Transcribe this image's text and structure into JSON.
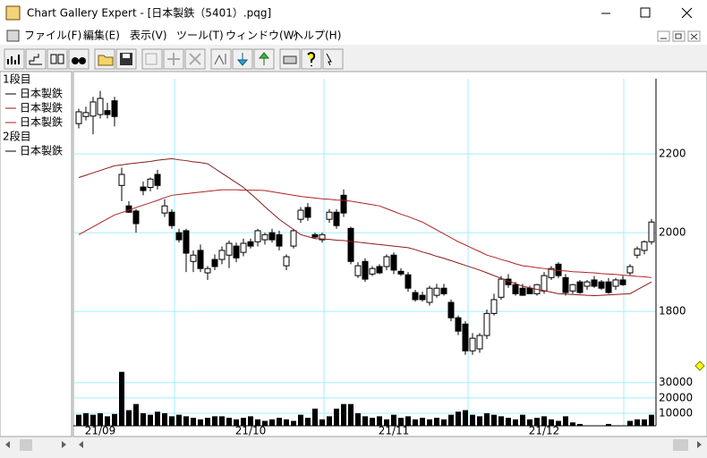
{
  "window": {
    "title": "Chart Gallery Expert - [日本製鉄（5401）.pqg]",
    "menu": [
      "ファイル(F)",
      "編集(E)",
      "表示(V)",
      "ツール(T)",
      "ウィンドウ(W)",
      "ヘルプ(H)"
    ]
  },
  "chart_data": {
    "type": "candlestick",
    "grid": true,
    "categories": [
      null,
      null,
      null,
      "21/09",
      null,
      null,
      null,
      null,
      null,
      null,
      null,
      null,
      null,
      null,
      null,
      null,
      null,
      null,
      null,
      null,
      null,
      null,
      null,
      null,
      "21/10",
      null,
      null,
      null,
      null,
      null,
      null,
      null,
      null,
      null,
      null,
      null,
      null,
      null,
      null,
      null,
      null,
      null,
      null,
      null,
      "21/11",
      null,
      null,
      null,
      null,
      null,
      null,
      null,
      null,
      null,
      null,
      null,
      null,
      null,
      null,
      null,
      null,
      null,
      null,
      null,
      null,
      "21/12",
      null,
      null,
      null,
      null,
      null,
      null,
      null,
      null,
      null,
      null,
      null,
      null,
      null,
      null,
      null
    ],
    "panels": [
      {
        "label": "1段目",
        "ylim": [
          1655,
          2391
        ],
        "yticks": [
          1800,
          2000,
          2200
        ],
        "series": [
          {
            "name": "日本製鉄",
            "type": "candlestick",
            "color": "#000000",
            "open": [
              2277,
              2295,
              2296,
              2300,
              2310,
              2335,
              2120,
              2068,
              2055,
              2116,
              2115,
              2148,
              2050,
              2052,
              2000,
              2005,
              1927,
              1955,
              1898,
              1932,
              1932,
              1943,
              1966,
              1950,
              1977,
              1977,
              1982,
              2000,
              1995,
              1916,
              1966,
              2034,
              2064,
              1995,
              1982,
              2034,
              2052,
              2095,
              2011,
              1891,
              1927,
              1895,
              1914,
              1914,
              1943,
              1902,
              1893,
              1848,
              1841,
              1823,
              1841,
              1859,
              1823,
              1784,
              1768,
              1700,
              1705,
              1739,
              1795,
              1836,
              1882,
              1868,
              1859,
              1859,
              1845,
              1852,
              1886,
              1920,
              1886,
              1852,
              1875,
              1864,
              1880,
              1875,
              1875,
              1864,
              1880,
              1898,
              1943,
              1955,
              1977
            ],
            "high": [
              2315,
              2320,
              2345,
              2360,
              2330,
              2345,
              2165,
              2080,
              2060,
              2130,
              2140,
              2160,
              2085,
              2060,
              2010,
              2010,
              1955,
              1970,
              1915,
              1945,
              1965,
              1980,
              1975,
              1985,
              1985,
              2010,
              2000,
              2010,
              2005,
              1945,
              2010,
              2065,
              2075,
              2000,
              2000,
              2060,
              2060,
              2110,
              2015,
              1925,
              1935,
              1915,
              1920,
              1945,
              1950,
              1910,
              1900,
              1855,
              1850,
              1865,
              1870,
              1870,
              1830,
              1790,
              1775,
              1745,
              1745,
              1805,
              1845,
              1890,
              1895,
              1875,
              1870,
              1865,
              1870,
              1900,
              1915,
              1925,
              1895,
              1870,
              1880,
              1880,
              1890,
              1880,
              1885,
              1885,
              1890,
              1920,
              1965,
              1980,
              2035
            ],
            "low": [
              2265,
              2285,
              2250,
              2290,
              2290,
              2270,
              2080,
              2050,
              2000,
              2095,
              2105,
              2110,
              2040,
              2010,
              1975,
              1900,
              1900,
              1900,
              1880,
              1905,
              1920,
              1910,
              1925,
              1940,
              1960,
              1965,
              1970,
              1975,
              1955,
              1905,
              1960,
              2025,
              2030,
              1985,
              1975,
              2025,
              2010,
              2040,
              1920,
              1885,
              1875,
              1890,
              1895,
              1905,
              1895,
              1890,
              1850,
              1825,
              1825,
              1815,
              1835,
              1840,
              1775,
              1740,
              1690,
              1690,
              1695,
              1730,
              1790,
              1830,
              1860,
              1840,
              1840,
              1845,
              1840,
              1845,
              1880,
              1885,
              1840,
              1845,
              1845,
              1855,
              1860,
              1855,
              1845,
              1855,
              1865,
              1890,
              1935,
              1945,
              1970
            ],
            "close": [
              2307,
              2305,
              2332,
              2341,
              2300,
              2295,
              2148,
              2052,
              2023,
              2107,
              2136,
              2120,
              2068,
              2018,
              1982,
              1948,
              1943,
              1909,
              1909,
              1914,
              1955,
              1973,
              1936,
              1973,
              1966,
              2005,
              1995,
              1982,
              1966,
              1939,
              2005,
              2057,
              2039,
              1989,
              1995,
              2052,
              2018,
              2050,
              1927,
              1916,
              1882,
              1909,
              1898,
              1939,
              1905,
              1895,
              1859,
              1830,
              1830,
              1859,
              1859,
              1845,
              1784,
              1750,
              1700,
              1732,
              1739,
              1795,
              1830,
              1882,
              1868,
              1845,
              1841,
              1845,
              1868,
              1891,
              1909,
              1891,
              1848,
              1868,
              1848,
              1875,
              1864,
              1859,
              1848,
              1880,
              1868,
              1914,
              1959,
              1977,
              2027
            ]
          },
          {
            "name": "日本製鉄",
            "type": "line",
            "color": "#8b1a1a",
            "values": [
              2140,
              2146,
              2152,
              2158,
              2164,
              2170,
              2172,
              2175,
              2177,
              2179,
              2181,
              2184,
              2186,
              2188,
              2185,
              2183,
              2180,
              2178,
              2175,
              2163,
              2151,
              2139,
              2127,
              2115,
              2099,
              2083,
              2066,
              2050,
              2034,
              2021,
              2008,
              1995,
              1990,
              1985,
              1984,
              1983,
              1981,
              1980,
              1978,
              1976,
              1974,
              1972,
              1970,
              1968,
              1966,
              1964,
              1962,
              1957,
              1951,
              1946,
              1940,
              1935,
              1929,
              1923,
              1917,
              1911,
              1905,
              1898,
              1891,
              1884,
              1877,
              1871,
              1864,
              1860,
              1856,
              1853,
              1849,
              1845,
              1844,
              1843,
              1842,
              1841,
              1840,
              1841,
              1842,
              1843,
              1844,
              1845,
              1855,
              1865,
              1875
            ]
          },
          {
            "name": "日本製鉄",
            "type": "line",
            "color": "#b22222",
            "values": [
              1995,
              2005,
              2015,
              2025,
              2035,
              2045,
              2051,
              2057,
              2064,
              2070,
              2076,
              2082,
              2089,
              2095,
              2097,
              2099,
              2101,
              2103,
              2105,
              2107,
              2109,
              2109,
              2109,
              2108,
              2108,
              2108,
              2107,
              2104,
              2101,
              2098,
              2095,
              2092,
              2090,
              2088,
              2086,
              2085,
              2083,
              2082,
              2080,
              2077,
              2074,
              2071,
              2068,
              2061,
              2054,
              2047,
              2041,
              2034,
              2027,
              2017,
              2007,
              1997,
              1987,
              1977,
              1969,
              1960,
              1952,
              1943,
              1938,
              1932,
              1927,
              1921,
              1916,
              1914,
              1911,
              1909,
              1906,
              1904,
              1903,
              1901,
              1900,
              1899,
              1898,
              1896,
              1895,
              1894,
              1892,
              1891,
              1889,
              1888,
              1886
            ]
          }
        ]
      },
      {
        "label": "2段目",
        "ylim": [
          1800,
          38000
        ],
        "yticks": [
          10000,
          20000,
          30000
        ],
        "series": [
          {
            "name": "日本製鉄",
            "type": "bar",
            "color": "#000000",
            "values": [
              9000,
              10000,
              9000,
              10000,
              8000,
              9500,
              37000,
              12000,
              16000,
              10000,
              9000,
              11000,
              10000,
              8000,
              9000,
              8000,
              7000,
              6000,
              7000,
              8000,
              8000,
              7000,
              6000,
              7000,
              8000,
              6000,
              5000,
              6000,
              7000,
              6000,
              5000,
              9000,
              7000,
              13000,
              6000,
              8000,
              13000,
              16000,
              16000,
              10000,
              8000,
              7000,
              8000,
              6000,
              9000,
              7000,
              8000,
              6000,
              7000,
              6000,
              7000,
              6000,
              9000,
              11000,
              12000,
              9000,
              8000,
              10000,
              9000,
              8000,
              7000,
              6000,
              9000,
              6000,
              7000,
              8000,
              6000,
              5000,
              8000,
              4000,
              3000,
              2000,
              2000,
              2000,
              3000,
              2000,
              2000,
              5000,
              6000,
              6000,
              9000
            ]
          }
        ]
      }
    ]
  }
}
